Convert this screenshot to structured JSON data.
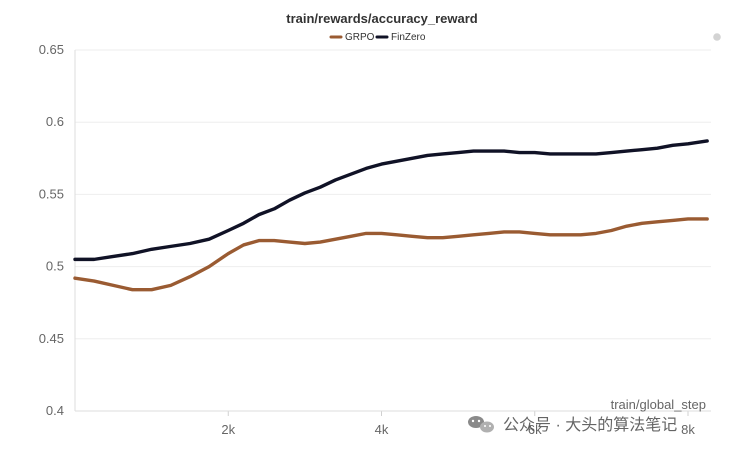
{
  "chart_data": {
    "type": "line",
    "title": "train/rewards/accuracy_reward",
    "xlabel": "train/global_step",
    "ylabel": "",
    "xlim": [
      0,
      8300
    ],
    "ylim": [
      0.4,
      0.65
    ],
    "x_ticks": [
      {
        "value": 2000,
        "label": "2k"
      },
      {
        "value": 4000,
        "label": "4k"
      },
      {
        "value": 6000,
        "label": "6k"
      },
      {
        "value": 8000,
        "label": "8k"
      }
    ],
    "y_ticks": [
      {
        "value": 0.4,
        "label": "0.4"
      },
      {
        "value": 0.45,
        "label": "0.45"
      },
      {
        "value": 0.5,
        "label": "0.5"
      },
      {
        "value": 0.55,
        "label": "0.55"
      },
      {
        "value": 0.6,
        "label": "0.6"
      },
      {
        "value": 0.65,
        "label": "0.65"
      }
    ],
    "grid": true,
    "legend_position": "top-center",
    "series": [
      {
        "name": "GRPO",
        "color": "#9a5b32",
        "points": [
          [
            0,
            0.492
          ],
          [
            250,
            0.49
          ],
          [
            500,
            0.487
          ],
          [
            750,
            0.484
          ],
          [
            1000,
            0.484
          ],
          [
            1250,
            0.487
          ],
          [
            1500,
            0.493
          ],
          [
            1750,
            0.5
          ],
          [
            2000,
            0.509
          ],
          [
            2200,
            0.515
          ],
          [
            2400,
            0.518
          ],
          [
            2600,
            0.518
          ],
          [
            2800,
            0.517
          ],
          [
            3000,
            0.516
          ],
          [
            3200,
            0.517
          ],
          [
            3400,
            0.519
          ],
          [
            3600,
            0.521
          ],
          [
            3800,
            0.523
          ],
          [
            4000,
            0.523
          ],
          [
            4200,
            0.522
          ],
          [
            4400,
            0.521
          ],
          [
            4600,
            0.52
          ],
          [
            4800,
            0.52
          ],
          [
            5000,
            0.521
          ],
          [
            5200,
            0.522
          ],
          [
            5400,
            0.523
          ],
          [
            5600,
            0.524
          ],
          [
            5800,
            0.524
          ],
          [
            6000,
            0.523
          ],
          [
            6200,
            0.522
          ],
          [
            6400,
            0.522
          ],
          [
            6600,
            0.522
          ],
          [
            6800,
            0.523
          ],
          [
            7000,
            0.525
          ],
          [
            7200,
            0.528
          ],
          [
            7400,
            0.53
          ],
          [
            7600,
            0.531
          ],
          [
            7800,
            0.532
          ],
          [
            8000,
            0.533
          ],
          [
            8250,
            0.533
          ]
        ]
      },
      {
        "name": "FinZero",
        "color": "#101226",
        "points": [
          [
            0,
            0.505
          ],
          [
            250,
            0.505
          ],
          [
            500,
            0.507
          ],
          [
            750,
            0.509
          ],
          [
            1000,
            0.512
          ],
          [
            1250,
            0.514
          ],
          [
            1500,
            0.516
          ],
          [
            1750,
            0.519
          ],
          [
            2000,
            0.525
          ],
          [
            2200,
            0.53
          ],
          [
            2400,
            0.536
          ],
          [
            2600,
            0.54
          ],
          [
            2800,
            0.546
          ],
          [
            3000,
            0.551
          ],
          [
            3200,
            0.555
          ],
          [
            3400,
            0.56
          ],
          [
            3600,
            0.564
          ],
          [
            3800,
            0.568
          ],
          [
            4000,
            0.571
          ],
          [
            4200,
            0.573
          ],
          [
            4400,
            0.575
          ],
          [
            4600,
            0.577
          ],
          [
            4800,
            0.578
          ],
          [
            5000,
            0.579
          ],
          [
            5200,
            0.58
          ],
          [
            5400,
            0.58
          ],
          [
            5600,
            0.58
          ],
          [
            5800,
            0.579
          ],
          [
            6000,
            0.579
          ],
          [
            6200,
            0.578
          ],
          [
            6400,
            0.578
          ],
          [
            6600,
            0.578
          ],
          [
            6800,
            0.578
          ],
          [
            7000,
            0.579
          ],
          [
            7200,
            0.58
          ],
          [
            7400,
            0.581
          ],
          [
            7600,
            0.582
          ],
          [
            7800,
            0.584
          ],
          [
            8000,
            0.585
          ],
          [
            8250,
            0.587
          ]
        ]
      }
    ]
  },
  "watermark": {
    "text": "公众号 · 大头的算法笔记",
    "icon": "wechat-icon"
  }
}
